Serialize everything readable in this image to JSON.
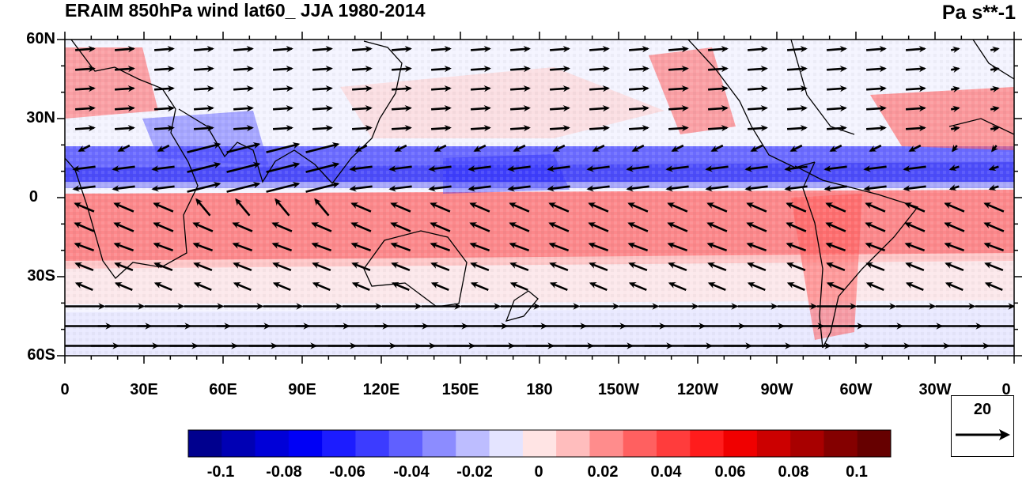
{
  "header": {
    "title": "ERAIM 850hPa wind lat60_ JJA 1980-2014",
    "units": "Pa s**-1"
  },
  "axes": {
    "lat_ticks": [
      "60N",
      "30N",
      "0",
      "30S",
      "60S"
    ],
    "lon_ticks": [
      "0",
      "30E",
      "60E",
      "90E",
      "120E",
      "150E",
      "180",
      "150W",
      "120W",
      "90W",
      "60W",
      "30W",
      "0"
    ],
    "lat_range": [
      -60,
      60
    ],
    "lon_range": [
      0,
      360
    ],
    "projection": "cylindrical equidistant"
  },
  "colorbar": {
    "colors": [
      "#00008e",
      "#0000b4",
      "#0000d8",
      "#0000f6",
      "#1c1cff",
      "#3c3cff",
      "#6060ff",
      "#8c8cff",
      "#bdbdff",
      "#e4e4ff",
      "#ffe4e4",
      "#ffbdbd",
      "#ff8c8c",
      "#ff6060",
      "#ff3c3c",
      "#ff1c1c",
      "#f00000",
      "#cc0000",
      "#a80000",
      "#840000",
      "#660000"
    ],
    "labels": [
      "-0.1",
      "-0.08",
      "-0.06",
      "-0.04",
      "-0.02",
      "0",
      "0.02",
      "0.04",
      "0.06",
      "0.08",
      "0.1"
    ]
  },
  "reference_vector": {
    "magnitude_label": "20"
  },
  "field_colors": {
    "negative": "#3a3aff",
    "positive": "#ff5a5a",
    "neutral": "#f4f4ff",
    "vector": "#000000",
    "coastline": "#000000"
  }
}
